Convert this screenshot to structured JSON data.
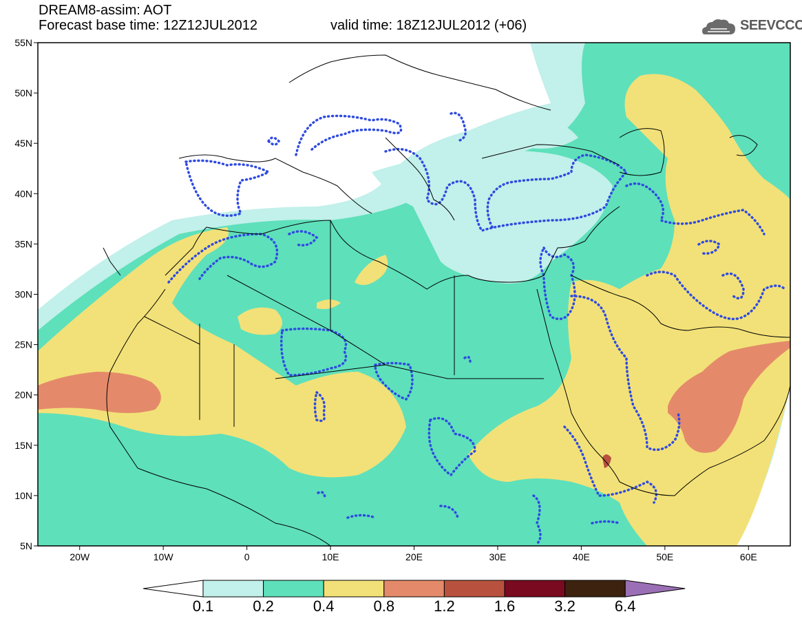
{
  "header": {
    "model_line": "DREAM8-assim: AOT",
    "base_time_line": "Forecast base time: 12Z12JUL2012",
    "valid_time_line": "valid time: 18Z12JUL2012 (+06)"
  },
  "logo": {
    "text": "SEEVCCC",
    "icon": "cloud-icon"
  },
  "map": {
    "lat_labels": [
      "55N",
      "50N",
      "45N",
      "40N",
      "35N",
      "30N",
      "25N",
      "20N",
      "15N",
      "10N",
      "5N"
    ],
    "lon_labels": [
      "20W",
      "10W",
      "0",
      "10E",
      "20E",
      "30E",
      "40E",
      "50E",
      "60E"
    ],
    "region": {
      "lon_range": [
        -25,
        65
      ],
      "lat_range": [
        5,
        55
      ]
    }
  },
  "colorbar": {
    "labels": [
      "0.1",
      "0.2",
      "0.4",
      "0.8",
      "1.2",
      "1.6",
      "3.2",
      "6.4"
    ],
    "colors": [
      "#ffffff",
      "#c2f0ea",
      "#5ee0bb",
      "#f2e178",
      "#e48a6a",
      "#b8523f",
      "#7a0a20",
      "#3d2210",
      "#9b6fb5"
    ]
  },
  "colors": {
    "c01": "#c2f0ea",
    "c02": "#5ee0bb",
    "c04": "#f2e178",
    "c08": "#e48a6a",
    "c12": "#b8523f",
    "contour": "#2f4be0"
  }
}
